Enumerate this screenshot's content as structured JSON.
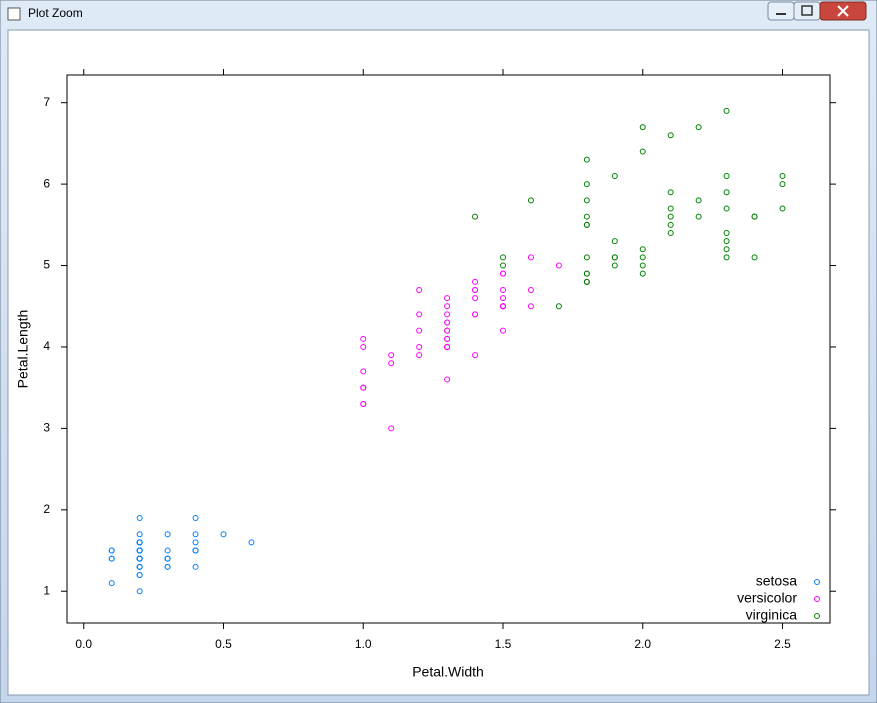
{
  "window": {
    "title": "Plot Zoom"
  },
  "chart_data": {
    "type": "scatter",
    "x_label": "Petal.Width",
    "y_label": "Petal.Length",
    "xlim": [
      -0.06,
      2.67
    ],
    "ylim": [
      0.61,
      7.34
    ],
    "xticks": [
      {
        "value": 0,
        "label": "0.0"
      },
      0.5,
      {
        "value": 1,
        "label": "1.0"
      },
      1.5,
      {
        "value": 2,
        "label": "2.0"
      },
      2.5
    ],
    "yticks": [
      1,
      2,
      3,
      4,
      5,
      6,
      7
    ],
    "grid": false,
    "legend": "bottom-right",
    "series": [
      {
        "name": "setosa",
        "color": "#0080ff",
        "x": [
          0.2,
          0.2,
          0.2,
          0.2,
          0.2,
          0.4,
          0.3,
          0.2,
          0.2,
          0.1,
          0.2,
          0.2,
          0.1,
          0.1,
          0.2,
          0.4,
          0.4,
          0.3,
          0.3,
          0.3,
          0.2,
          0.4,
          0.2,
          0.5,
          0.2,
          0.2,
          0.4,
          0.2,
          0.2,
          0.2,
          0.2,
          0.4,
          0.1,
          0.2,
          0.2,
          0.2,
          0.2,
          0.1,
          0.2,
          0.2,
          0.3,
          0.3,
          0.2,
          0.6,
          0.4,
          0.3,
          0.2,
          0.2,
          0.2,
          0.2
        ],
        "values": [
          1.4,
          1.4,
          1.3,
          1.5,
          1.4,
          1.7,
          1.4,
          1.5,
          1.4,
          1.5,
          1.5,
          1.6,
          1.4,
          1.1,
          1.2,
          1.5,
          1.3,
          1.4,
          1.7,
          1.5,
          1.7,
          1.5,
          1.0,
          1.7,
          1.9,
          1.6,
          1.6,
          1.5,
          1.4,
          1.6,
          1.6,
          1.5,
          1.5,
          1.4,
          1.5,
          1.2,
          1.3,
          1.4,
          1.3,
          1.5,
          1.3,
          1.3,
          1.3,
          1.6,
          1.9,
          1.4,
          1.6,
          1.4,
          1.5,
          1.4
        ]
      },
      {
        "name": "versicolor",
        "color": "#ff00ff",
        "x": [
          1.4,
          1.5,
          1.5,
          1.3,
          1.5,
          1.3,
          1.6,
          1.0,
          1.3,
          1.4,
          1.0,
          1.5,
          1.0,
          1.4,
          1.3,
          1.4,
          1.5,
          1.0,
          1.5,
          1.1,
          1.8,
          1.3,
          1.5,
          1.2,
          1.3,
          1.4,
          1.4,
          1.7,
          1.5,
          1.0,
          1.1,
          1.0,
          1.2,
          1.6,
          1.5,
          1.6,
          1.5,
          1.3,
          1.3,
          1.3,
          1.2,
          1.4,
          1.2,
          1.0,
          1.3,
          1.2,
          1.3,
          1.3,
          1.1,
          1.3
        ],
        "values": [
          4.7,
          4.5,
          4.9,
          4.0,
          4.6,
          4.5,
          4.7,
          3.3,
          4.6,
          3.9,
          3.5,
          4.2,
          4.0,
          4.7,
          3.6,
          4.4,
          4.5,
          4.1,
          4.5,
          3.9,
          4.8,
          4.0,
          4.9,
          4.7,
          4.3,
          4.4,
          4.8,
          5.0,
          4.5,
          3.5,
          3.8,
          3.7,
          3.9,
          5.1,
          4.5,
          4.5,
          4.7,
          4.4,
          4.1,
          4.0,
          4.4,
          4.6,
          4.0,
          3.3,
          4.2,
          4.2,
          4.2,
          4.3,
          3.0,
          4.1
        ]
      },
      {
        "name": "virginica",
        "color": "#008000",
        "x": [
          2.5,
          1.9,
          2.1,
          1.8,
          2.2,
          2.1,
          1.7,
          1.8,
          1.8,
          2.5,
          2.0,
          1.9,
          2.1,
          2.0,
          2.4,
          2.3,
          1.8,
          2.2,
          2.3,
          1.5,
          2.3,
          2.0,
          2.0,
          1.8,
          2.1,
          1.8,
          1.8,
          1.8,
          2.1,
          1.6,
          1.9,
          2.0,
          2.2,
          1.5,
          1.4,
          2.3,
          2.4,
          1.8,
          1.8,
          2.1,
          2.4,
          2.3,
          1.9,
          2.3,
          2.5,
          2.3,
          1.9,
          2.0,
          2.3,
          1.8
        ],
        "values": [
          6.0,
          5.1,
          5.9,
          5.6,
          5.8,
          6.6,
          4.5,
          6.3,
          5.8,
          6.1,
          5.1,
          5.3,
          5.5,
          5.0,
          5.1,
          5.3,
          5.5,
          6.7,
          6.9,
          5.0,
          5.7,
          4.9,
          6.7,
          4.9,
          5.7,
          6.0,
          4.8,
          4.9,
          5.6,
          5.8,
          6.1,
          6.4,
          5.6,
          5.1,
          5.6,
          6.1,
          5.6,
          5.5,
          4.8,
          5.4,
          5.6,
          5.1,
          5.1,
          5.9,
          5.7,
          5.2,
          5.0,
          5.2,
          5.4,
          5.1
        ]
      }
    ]
  }
}
